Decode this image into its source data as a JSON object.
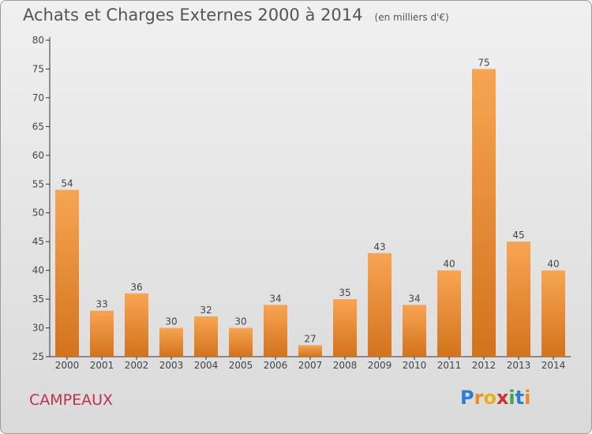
{
  "chart_data": {
    "type": "bar",
    "title": "Achats et Charges Externes 2000 à 2014",
    "unit": "(en milliers d'€)",
    "categories": [
      "2000",
      "2001",
      "2002",
      "2003",
      "2004",
      "2005",
      "2006",
      "2007",
      "2008",
      "2009",
      "2010",
      "2011",
      "2012",
      "2013",
      "2014"
    ],
    "values": [
      54,
      33,
      36,
      30,
      32,
      30,
      34,
      27,
      35,
      43,
      34,
      40,
      75,
      45,
      40
    ],
    "ylim": [
      25,
      80
    ],
    "yticks": [
      25,
      30,
      35,
      40,
      45,
      50,
      55,
      60,
      65,
      70,
      75,
      80
    ],
    "grid": false,
    "bar_color_light": "#f7a553",
    "bar_color_dark": "#d3731c"
  },
  "place": "CAMPEAUX",
  "logo": {
    "letters": [
      "P",
      "r",
      "o",
      "x",
      "i",
      "t",
      "i"
    ],
    "colors": [
      "#2a7fd4",
      "#f08a1c",
      "#e8b21a",
      "#d03030",
      "#3aa84a",
      "#2a7fd4",
      "#f08a1c"
    ]
  }
}
